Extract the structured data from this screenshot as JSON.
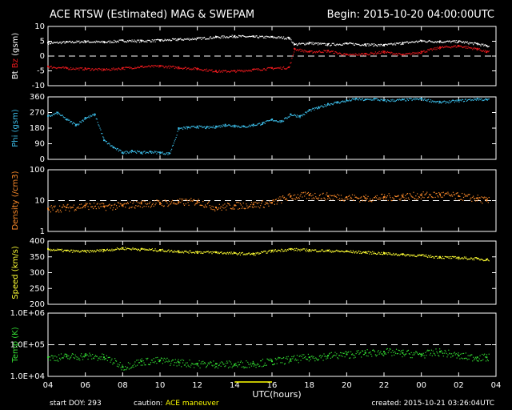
{
  "header": {
    "title": "ACE RTSW (Estimated) MAG & SWEPAM",
    "begin": "Begin: 2015-10-20 04:00:00UTC"
  },
  "footer": {
    "start_doy": "start DOY: 293",
    "caution_label": "caution:",
    "caution_text": "ACE maneuver",
    "created": "created: 2015-10-21 03:26:04UTC"
  },
  "colors": {
    "bt": "#ffffff",
    "bz": "#e8191d",
    "phi": "#3bbbe6",
    "density": "#ff8c2a",
    "speed": "#ffff33",
    "temp": "#33dd33",
    "caution": "#ffff00",
    "axis": "#ffffff"
  },
  "chart_data": [
    {
      "type": "scatter",
      "panel": "mag",
      "ylabel_parts": [
        "Bt",
        "Bz",
        "(gsm)"
      ],
      "yticks": [
        "10",
        "5",
        "0",
        "-5",
        "-10"
      ],
      "ylim": [
        -10,
        10
      ],
      "dashed_reference": 0,
      "series": [
        {
          "name": "Bt",
          "x": [
            0,
            1,
            2,
            3,
            4,
            5,
            6,
            7,
            8,
            9,
            10,
            11,
            12,
            12.9,
            13.2,
            14,
            15,
            16,
            17,
            18,
            19,
            20,
            21,
            22,
            23,
            23.5
          ],
          "y": [
            4.5,
            4.8,
            5,
            4.8,
            5.3,
            5.2,
            5.4,
            5.7,
            6,
            6.5,
            6.8,
            6.6,
            6.5,
            6.2,
            4,
            4.5,
            4,
            4.3,
            4,
            3.8,
            4.5,
            5.2,
            5,
            5,
            4.2,
            3.5
          ]
        },
        {
          "name": "Bz",
          "x": [
            0,
            1,
            2,
            3,
            4,
            5,
            6,
            7,
            8,
            9,
            10,
            11,
            12,
            12.9,
            13.2,
            14,
            15,
            16,
            17,
            18,
            19,
            20,
            21,
            22,
            23,
            23.5
          ],
          "y": [
            -3.5,
            -4,
            -4.2,
            -4.5,
            -4,
            -3.5,
            -3.3,
            -3.8,
            -4.2,
            -5,
            -5,
            -4.5,
            -4,
            -3.8,
            2.5,
            1.5,
            1.8,
            0.5,
            0.8,
            1.5,
            0.5,
            1.5,
            3,
            3.5,
            2.5,
            1.5
          ]
        }
      ]
    },
    {
      "type": "scatter",
      "panel": "phi",
      "ylabel": "Phi (gsm)",
      "yticks": [
        "360",
        "270",
        "180",
        "90",
        "0"
      ],
      "ylim": [
        0,
        360
      ],
      "series": [
        {
          "name": "Phi",
          "x": [
            0,
            0.5,
            1,
            1.5,
            2,
            2.5,
            3,
            3.5,
            4,
            4.5,
            5,
            5.5,
            6,
            6.5,
            7,
            7.5,
            8,
            8.5,
            9,
            9.5,
            10,
            10.5,
            11,
            11.5,
            12,
            12.5,
            13,
            13.5,
            14,
            14.5,
            15,
            15.5,
            16,
            16.5,
            17,
            17.5,
            18,
            19,
            20,
            21,
            22,
            23,
            23.5
          ],
          "y": [
            250,
            270,
            230,
            200,
            240,
            260,
            110,
            70,
            40,
            50,
            40,
            45,
            40,
            35,
            180,
            185,
            190,
            185,
            190,
            200,
            195,
            190,
            200,
            210,
            230,
            220,
            260,
            250,
            285,
            300,
            320,
            330,
            340,
            350,
            345,
            350,
            340,
            345,
            350,
            330,
            340,
            350,
            345
          ]
        }
      ]
    },
    {
      "type": "scatter",
      "panel": "density",
      "ylabel": "Density (/cm3)",
      "yscale": "log",
      "yticks": [
        "100",
        "10",
        "1"
      ],
      "ylim": [
        1,
        100
      ],
      "dashed_reference": 10,
      "series": [
        {
          "name": "Density",
          "x": [
            0,
            1,
            2,
            3,
            4,
            5,
            6,
            7,
            8,
            9,
            10,
            11,
            12,
            13,
            14,
            15,
            16,
            17,
            18,
            19,
            20,
            21,
            22,
            23,
            23.5
          ],
          "y": [
            5.5,
            6,
            7,
            6.5,
            7,
            8,
            8.5,
            9,
            9.5,
            6,
            7,
            7.5,
            8.5,
            14,
            15,
            14,
            13,
            12,
            13,
            14,
            15,
            16,
            14,
            12,
            10
          ]
        }
      ]
    },
    {
      "type": "scatter",
      "panel": "speed",
      "ylabel": "Speed (km/s)",
      "yticks": [
        "400",
        "350",
        "300",
        "250",
        "200"
      ],
      "ylim": [
        200,
        400
      ],
      "series": [
        {
          "name": "Speed",
          "x": [
            0,
            1,
            2,
            3,
            4,
            5,
            6,
            7,
            8,
            9,
            10,
            11,
            12,
            13,
            14,
            15,
            16,
            17,
            18,
            19,
            20,
            21,
            22,
            23,
            23.5
          ],
          "y": [
            375,
            370,
            368,
            372,
            378,
            375,
            372,
            368,
            366,
            365,
            362,
            360,
            370,
            375,
            372,
            370,
            368,
            365,
            362,
            358,
            355,
            350,
            348,
            345,
            342
          ]
        }
      ]
    },
    {
      "type": "scatter",
      "panel": "temp",
      "ylabel": "Temp (K)",
      "yscale": "log",
      "yticks": [
        "1.0E+06",
        "1.0E+05",
        "1.0E+04"
      ],
      "ylim": [
        10000,
        1000000
      ],
      "dashed_reference": 100000,
      "series": [
        {
          "name": "Temp",
          "x": [
            0,
            1,
            2,
            3,
            4,
            5,
            6,
            7,
            8,
            9,
            10,
            11,
            12,
            13,
            14,
            15,
            16,
            17,
            18,
            19,
            20,
            21,
            22,
            23,
            23.5
          ],
          "y": [
            40000,
            42000,
            45000,
            40000,
            20000,
            30000,
            32000,
            28000,
            25000,
            25000,
            24000,
            26000,
            30000,
            35000,
            40000,
            45000,
            50000,
            55000,
            60000,
            55000,
            50000,
            60000,
            45000,
            40000,
            40000
          ]
        }
      ]
    }
  ],
  "xaxis": {
    "label": "UTC(hours)",
    "tick_labels": [
      "04",
      "06",
      "08",
      "10",
      "12",
      "14",
      "16",
      "18",
      "20",
      "22",
      "00",
      "02",
      "04"
    ],
    "range_hours": [
      0,
      24
    ],
    "caution_interval_hours": [
      10,
      12
    ]
  }
}
